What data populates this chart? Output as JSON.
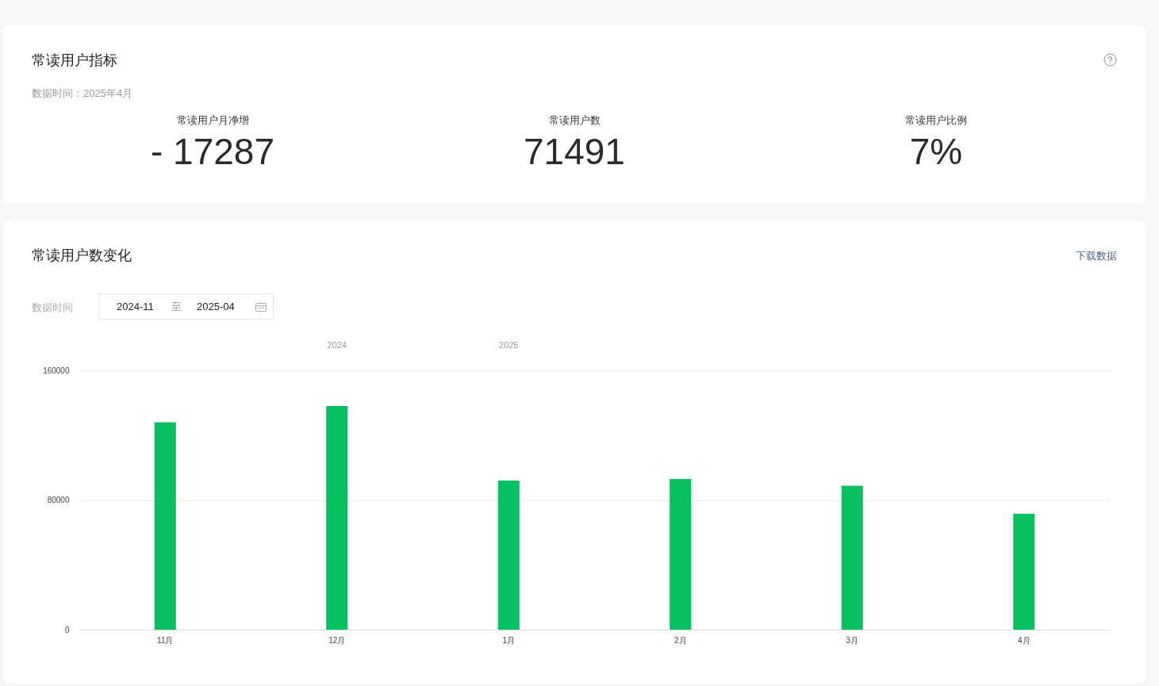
{
  "chart_data": [
    {
      "type": "other",
      "title": "常读用户指标",
      "subtitle": "数据时间：2025年4月",
      "annotations": [
        "常读用户月净增",
        "- 17287",
        "常读用户数",
        "71491",
        "常读用户比例",
        "7%"
      ]
    },
    {
      "type": "bar",
      "title": "常读用户数变化",
      "categories": [
        "11月",
        "12月",
        "1月",
        "2月",
        "3月",
        "4月"
      ],
      "values": [
        128000,
        138000,
        92000,
        93000,
        88800,
        71500
      ],
      "color": "#07c160",
      "ylim": [
        0,
        160000
      ],
      "yticks": [
        0,
        80000,
        160000
      ],
      "grid": "y",
      "annotations": [
        "下载数据",
        "数据时间",
        "2024-11",
        "至",
        "2025-04",
        "2024",
        "2025"
      ]
    }
  ]
}
